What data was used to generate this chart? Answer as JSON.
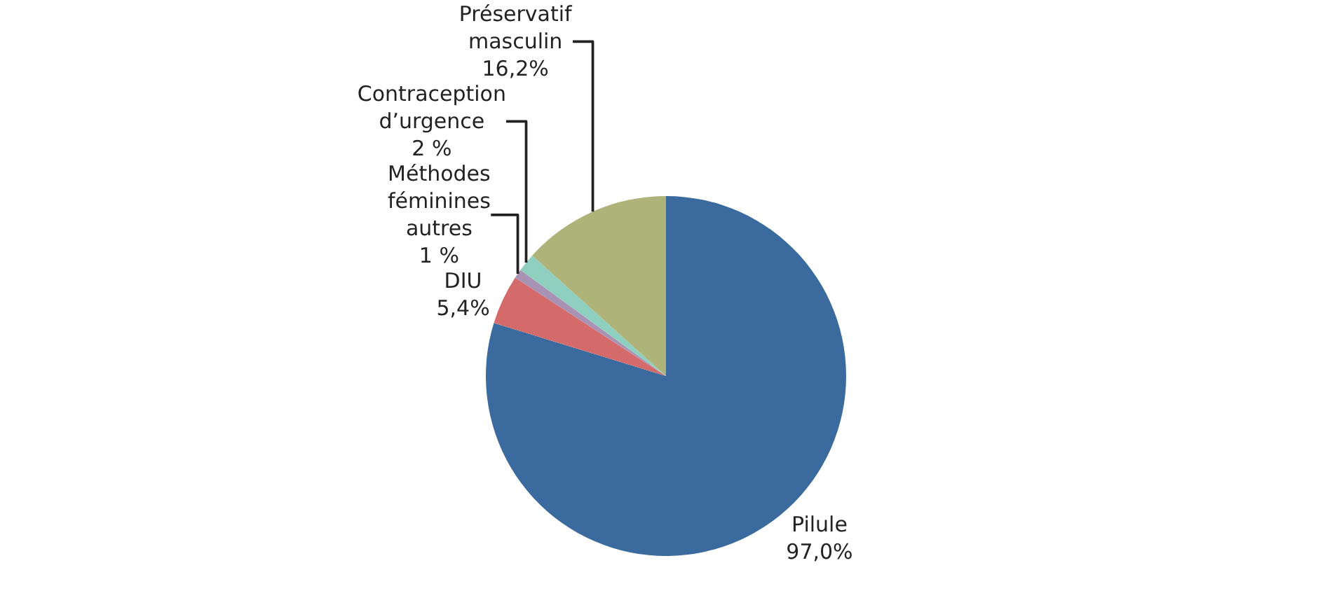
{
  "chart_data": {
    "type": "pie",
    "categories": [
      "Pilule",
      "DIU",
      "Méthodes féminines autres",
      "Contraception d’urgence",
      "Préservatif masculin"
    ],
    "values": [
      97.0,
      5.4,
      1,
      2,
      16.2
    ],
    "value_labels": [
      "97,0%",
      "5,4%",
      "1 %",
      "2 %",
      "16,2%"
    ],
    "colors": [
      "#3a6a9e",
      "#d46a6a",
      "#a993b5",
      "#8fcfbf",
      "#aeb37a"
    ],
    "legend": false
  }
}
